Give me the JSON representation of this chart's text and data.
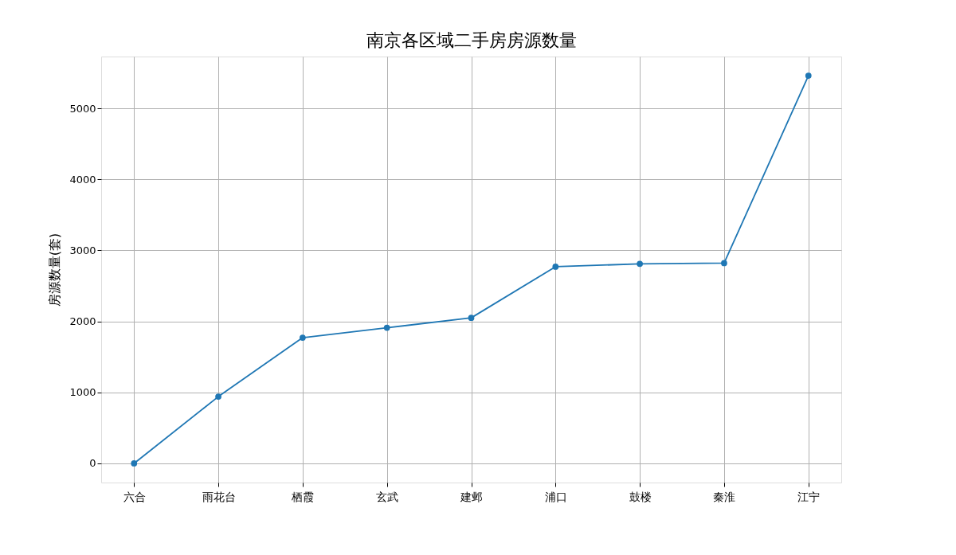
{
  "chart_data": {
    "type": "line",
    "title": "南京各区域二手房房源数量",
    "ylabel": "房源数量(套)",
    "categories": [
      "六合",
      "雨花台",
      "栖霞",
      "玄武",
      "建邺",
      "浦口",
      "鼓楼",
      "秦淮",
      "江宁"
    ],
    "series": [
      {
        "color": "#1f77b4",
        "values": [
          0,
          940,
          1770,
          1910,
          2050,
          2770,
          2810,
          2820,
          5460
        ]
      }
    ],
    "ylim": [
      -270,
      5730
    ],
    "yticks": [
      0,
      1000,
      2000,
      3000,
      4000,
      5000
    ],
    "grid": true,
    "marker": "circle",
    "line_style": "solid"
  }
}
